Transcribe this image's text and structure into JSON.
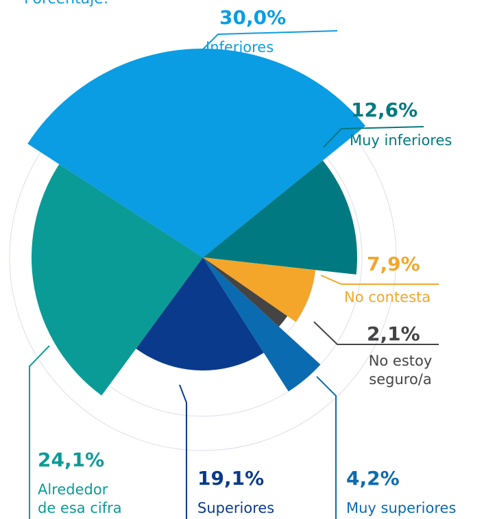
{
  "chart_data": {
    "type": "polar-area",
    "title": "Porcentaje:",
    "categories": [
      "Inferiores",
      "Muy inferiores",
      "No contesta",
      "No estoy seguro/a",
      "Muy superiores",
      "Superiores",
      "Alrededor de esa cifra"
    ],
    "values": [
      30.0,
      12.6,
      7.9,
      2.1,
      4.2,
      19.1,
      24.1
    ],
    "value_labels": [
      "30,0%",
      "12,6%",
      "7,9%",
      "2,1%",
      "4,2%",
      "19,1%",
      "24,1%"
    ],
    "colors": [
      "#0a9de3",
      "#007a80",
      "#f4a62a",
      "#444444",
      "#0b6bb0",
      "#0a3a8c",
      "#0a9b96"
    ],
    "grid": true
  }
}
